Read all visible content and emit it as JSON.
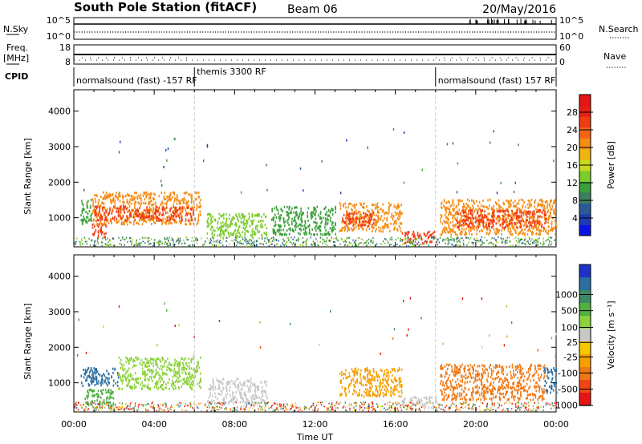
{
  "header": {
    "station": "South Pole Station (fitACF)",
    "beam": "Beam 06",
    "date": "20/May/2016"
  },
  "side_labels": {
    "nsky": "N.Sky",
    "freq_line1": "Freq.",
    "freq_line2": "[MHz]",
    "cpid": "CPID",
    "nsearch": "N.Search",
    "nave": "Nave"
  },
  "top_axes": {
    "nsky_ticks": [
      "10^5",
      "10^0"
    ],
    "nsearch_ticks": [
      "10^5",
      "10^0"
    ],
    "freq_ticks": [
      "18",
      "8"
    ],
    "nave_ticks": [
      "60",
      "0"
    ]
  },
  "cpid_segments": [
    {
      "label": "normalsound (fast) -157 RF",
      "start_h": 0,
      "end_h": 6
    },
    {
      "label": "themis 3300 RF",
      "start_h": 6,
      "end_h": 18
    },
    {
      "label": "normalsound (fast) 157 RF",
      "start_h": 18,
      "end_h": 24
    }
  ],
  "colors": {
    "power_scale": [
      "#0a14e6",
      "#1e3cb4",
      "#2a5a96",
      "#3c8060",
      "#3aa03a",
      "#7ccc2c",
      "#c8dc1e",
      "#f0b414",
      "#f58c14",
      "#f56414",
      "#f03c14",
      "#e61e14",
      "#e61414"
    ],
    "velocity_scale": [
      "#1e32c8",
      "#2c6ea0",
      "#3c8a64",
      "#50b040",
      "#8cd23c",
      "#c8c8c8",
      "#f5c800",
      "#f5a000",
      "#f07814",
      "#f04614",
      "#e61414"
    ],
    "ground_scatter": "#b4b4b4"
  },
  "chart_data": [
    {
      "type": "heatmap",
      "name": "power",
      "x": {
        "label": "Time UT",
        "range_h": [
          0,
          24
        ],
        "tick_labels": [
          "00:00",
          "04:00",
          "08:00",
          "12:00",
          "16:00",
          "20:00",
          "00:00"
        ]
      },
      "y": {
        "label": "Slant Range [km]",
        "range": [
          180,
          4600
        ],
        "tick_values": [
          1000,
          2000,
          3000,
          4000
        ]
      },
      "colorbar": {
        "label": "Power [dB]",
        "range": [
          0,
          32
        ],
        "tick_values": [
          4,
          8,
          12,
          16,
          20,
          24,
          28
        ]
      },
      "echo_regions": [
        {
          "t0": 0.9,
          "t1": 1.6,
          "r0": 400,
          "r1": 800,
          "level": 26
        },
        {
          "t0": 0.3,
          "t1": 0.9,
          "r0": 800,
          "r1": 1500,
          "level": 10
        },
        {
          "t0": 0.9,
          "t1": 6.3,
          "r0": 800,
          "r1": 1700,
          "level": 20
        },
        {
          "t0": 1.0,
          "t1": 6.0,
          "r0": 900,
          "r1": 1300,
          "level": 27
        },
        {
          "t0": 6.6,
          "t1": 9.6,
          "r0": 400,
          "r1": 1100,
          "level": 14
        },
        {
          "t0": 9.8,
          "t1": 13.0,
          "r0": 500,
          "r1": 1300,
          "level": 10
        },
        {
          "t0": 13.2,
          "t1": 16.3,
          "r0": 600,
          "r1": 1400,
          "level": 22
        },
        {
          "t0": 13.3,
          "t1": 15.0,
          "r0": 750,
          "r1": 1150,
          "level": 27
        },
        {
          "t0": 16.3,
          "t1": 18.0,
          "r0": 250,
          "r1": 600,
          "level": 26
        },
        {
          "t0": 18.2,
          "t1": 24.0,
          "r0": 500,
          "r1": 1500,
          "level": 22
        },
        {
          "t0": 19.0,
          "t1": 23.5,
          "r0": 700,
          "r1": 1200,
          "level": 27
        }
      ]
    },
    {
      "type": "heatmap",
      "name": "velocity",
      "x": {
        "label": "Time UT",
        "range_h": [
          0,
          24
        ],
        "tick_labels": [
          "00:00",
          "04:00",
          "08:00",
          "12:00",
          "16:00",
          "20:00",
          "00:00"
        ]
      },
      "y": {
        "label": "Slant Range [km]",
        "range": [
          180,
          4600
        ],
        "tick_values": [
          1000,
          2000,
          3000,
          4000
        ]
      },
      "colorbar": {
        "label": "Velocity [m s⁻¹]",
        "tick_labels": [
          "1000",
          "500",
          "100",
          "25",
          "-25",
          "-100",
          "-500",
          "-1000"
        ]
      },
      "echo_regions": [
        {
          "t0": 0.3,
          "t1": 2.2,
          "r0": 900,
          "r1": 1400,
          "level": 1
        },
        {
          "t0": 0.5,
          "t1": 2.0,
          "r0": 300,
          "r1": 800,
          "level": 3
        },
        {
          "t0": 2.2,
          "t1": 6.3,
          "r0": 800,
          "r1": 1700,
          "level": 4
        },
        {
          "t0": 6.6,
          "t1": 9.6,
          "r0": 400,
          "r1": 1100,
          "level": 5
        },
        {
          "t0": 13.2,
          "t1": 16.3,
          "r0": 600,
          "r1": 1400,
          "level": 7
        },
        {
          "t0": 16.3,
          "t1": 18.0,
          "r0": 250,
          "r1": 600,
          "level": 5
        },
        {
          "t0": 18.2,
          "t1": 23.4,
          "r0": 500,
          "r1": 1500,
          "level": 8
        },
        {
          "t0": 23.4,
          "t1": 24.0,
          "r0": 700,
          "r1": 1400,
          "level": 1
        }
      ]
    }
  ]
}
